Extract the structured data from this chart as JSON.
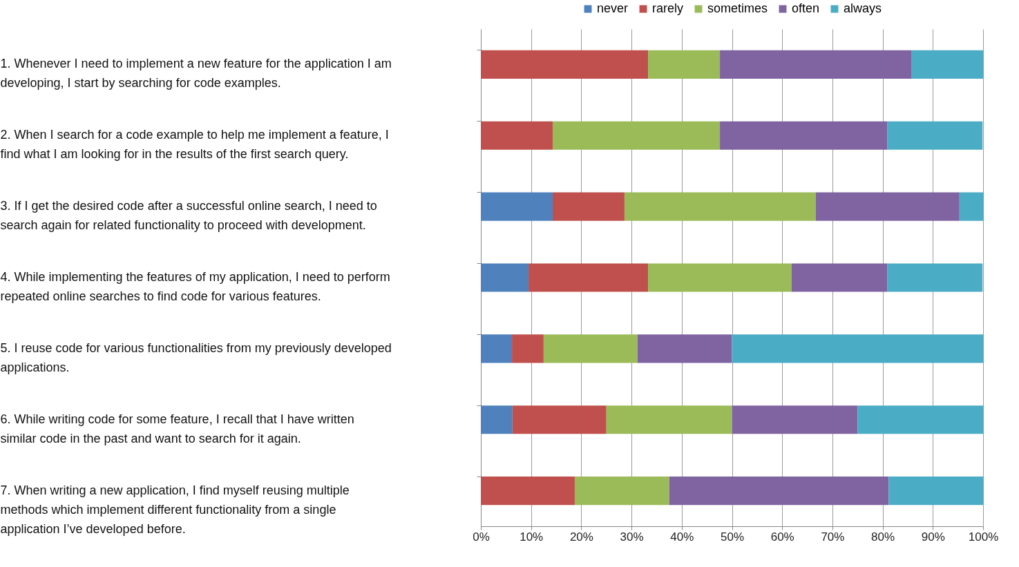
{
  "chart_data": {
    "type": "bar",
    "orientation": "horizontal",
    "stacked": true,
    "categories": [
      "1. Whenever I need to implement a new feature for the application I am developing, I start by searching for code examples.",
      "2. When I search for a code example to help me implement a feature, I find what I am looking for in the results of the first search query.",
      "3. If I get the desired code after a successful online search, I need to search again for related functionality to proceed with development.",
      "4. While implementing the features of my application, I need to perform repeated online searches to find code for various features.",
      "5. I reuse code for various functionalities from my previously developed applications.",
      "6. While writing code for some feature, I recall that I have written similar code in the past and want to search for it again.",
      "7. When writing a new application, I find myself reusing multiple methods which implement different functionality from a single application I’ve developed before."
    ],
    "series": [
      {
        "name": "never",
        "color": "#4f81bd",
        "values": [
          0,
          0,
          14.3,
          9.5,
          6.2,
          6.3,
          0
        ]
      },
      {
        "name": "rarely",
        "color": "#c0504d",
        "values": [
          33.3,
          14.3,
          14.3,
          23.8,
          6.3,
          18.7,
          18.7
        ]
      },
      {
        "name": "sometimes",
        "color": "#9bbb59",
        "values": [
          14.3,
          33.3,
          38.1,
          28.6,
          18.7,
          25,
          18.8
        ]
      },
      {
        "name": "often",
        "color": "#8064a2",
        "values": [
          38.1,
          33.3,
          28.6,
          19.0,
          18.8,
          25,
          43.7
        ]
      },
      {
        "name": "always",
        "color": "#4bacc6",
        "values": [
          14.3,
          19.0,
          4.8,
          19.0,
          50,
          25,
          18.8
        ]
      }
    ],
    "xlim": [
      0,
      100
    ],
    "xticks": [
      {
        "value": 0,
        "label": "0%"
      },
      {
        "value": 10,
        "label": "10%"
      },
      {
        "value": 20,
        "label": "20%"
      },
      {
        "value": 30,
        "label": "30%"
      },
      {
        "value": 40,
        "label": "40%"
      },
      {
        "value": 50,
        "label": "50%"
      },
      {
        "value": 60,
        "label": "60%"
      },
      {
        "value": 70,
        "label": "70%"
      },
      {
        "value": 80,
        "label": "80%"
      },
      {
        "value": 90,
        "label": "90%"
      },
      {
        "value": 100,
        "label": "100%"
      }
    ],
    "grid": "x",
    "legend": "top"
  }
}
